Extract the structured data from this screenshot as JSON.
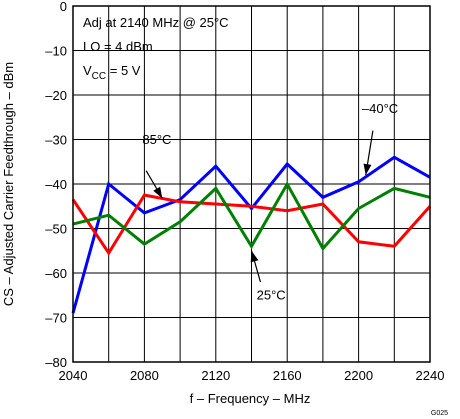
{
  "chart_data": {
    "type": "line",
    "title": "",
    "xlabel": "f – Frequency – MHz",
    "ylabel": "CS – Adjusted Carrier Feedthrough – dBm",
    "xlim": [
      2040,
      2240
    ],
    "ylim": [
      -80,
      0
    ],
    "xticks": [
      2040,
      2080,
      2120,
      2160,
      2200,
      2240
    ],
    "yticks": [
      0,
      -10,
      -20,
      -30,
      -40,
      -50,
      -60,
      -70,
      -80
    ],
    "xtick_labels": [
      "2040",
      "2080",
      "2120",
      "2160",
      "2200",
      "2240"
    ],
    "ytick_labels": [
      "0",
      "–10",
      "–20",
      "–30",
      "–40",
      "–50",
      "–60",
      "–70",
      "–80"
    ],
    "x_minor_step": 20,
    "y_grid_step": 10,
    "grid": true,
    "conditions": {
      "line1": "Adj at 2140 MHz @ 25°C",
      "line2": "LO = 4 dBm",
      "line3_prefix": "V",
      "line3_sub": "CC",
      "line3_suffix": " = 5 V"
    },
    "x": [
      2040,
      2060,
      2080,
      2100,
      2120,
      2140,
      2160,
      2180,
      2200,
      2220,
      2240
    ],
    "series": [
      {
        "color": "#0000ff",
        "values": [
          -69,
          -40,
          -46.5,
          -43.5,
          -36,
          -45.5,
          -35.5,
          -43,
          -39.5,
          -34,
          -38.5
        ]
      },
      {
        "color": "#ff0000",
        "values": [
          -43.5,
          -55.5,
          -42.5,
          -44,
          -44.5,
          -45,
          -46,
          -44.5,
          -53,
          -54,
          -45
        ]
      },
      {
        "color": "#008000",
        "values": [
          -49,
          -47,
          -53.5,
          -48.5,
          -41,
          -54,
          -40,
          -54.5,
          -45.5,
          -41,
          -43
        ]
      }
    ],
    "annotations": [
      {
        "label": "85°C",
        "text_x": 2087,
        "text_y": -31,
        "arrow_from": [
          2081,
          -37
        ],
        "arrow_to": [
          2090,
          -43.2
        ]
      },
      {
        "label": "–40°C",
        "text_x": 2212,
        "text_y": -24,
        "arrow_from": [
          2208,
          -28
        ],
        "arrow_to": [
          2204,
          -38
        ]
      },
      {
        "label": "25°C",
        "text_x": 2151,
        "text_y": -66,
        "arrow_from": [
          2145,
          -62
        ],
        "arrow_to": [
          2140,
          -55
        ]
      }
    ],
    "figure_id": "G025"
  }
}
